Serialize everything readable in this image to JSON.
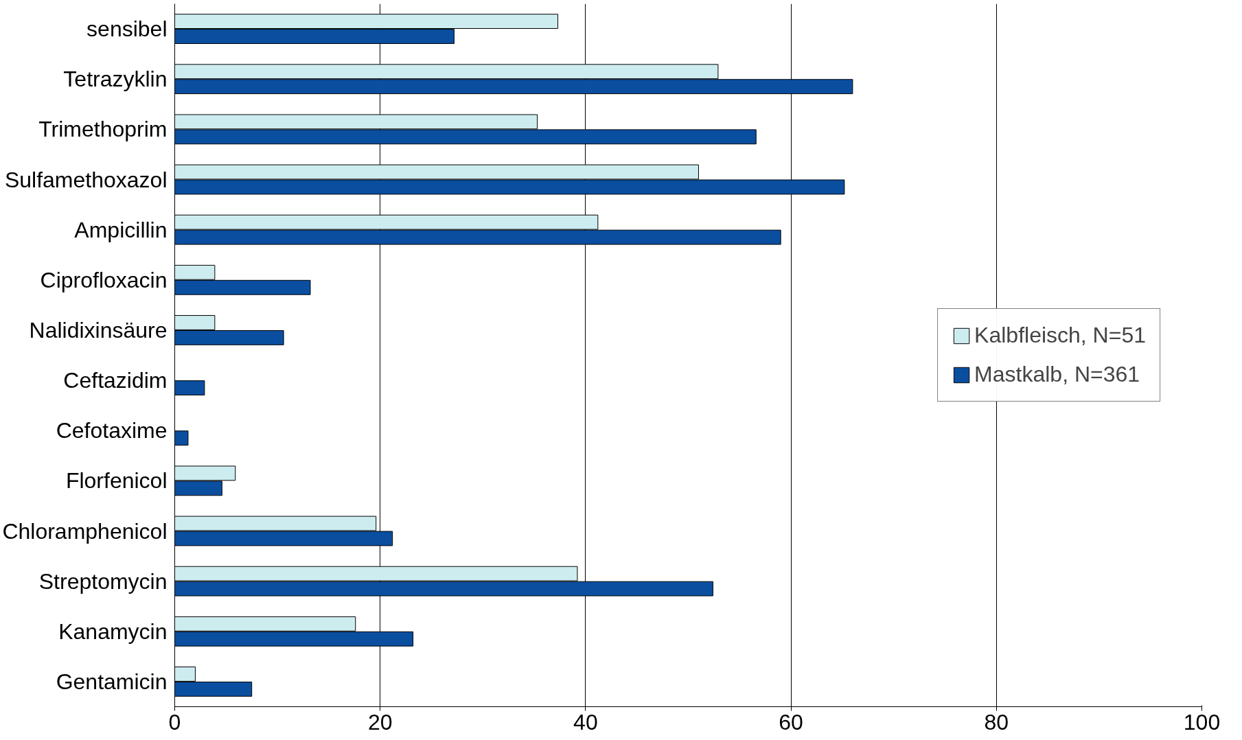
{
  "chart_data": {
    "type": "bar",
    "orientation": "horizontal",
    "categories": [
      "sensibel",
      "Tetrazyklin",
      "Trimethoprim",
      "Sulfamethoxazol",
      "Ampicillin",
      "Ciprofloxacin",
      "Nalidixinsäure",
      "Ceftazidim",
      "Cefotaxime",
      "Florfenicol",
      "Chloramphenicol",
      "Streptomycin",
      "Kanamycin",
      "Gentamicin"
    ],
    "series": [
      {
        "name": "Kalbfleisch, N=51",
        "color": "#cdecf0",
        "values": [
          37.3,
          52.9,
          35.3,
          51.0,
          41.2,
          3.9,
          3.9,
          0,
          0,
          5.9,
          19.6,
          39.2,
          17.6,
          2.0
        ]
      },
      {
        "name": "Mastkalb, N=361",
        "color": "#0a4ea0",
        "values": [
          27.2,
          66.0,
          56.6,
          65.2,
          59.0,
          13.2,
          10.6,
          2.9,
          1.3,
          4.6,
          21.2,
          52.4,
          23.2,
          7.5
        ]
      }
    ],
    "xlim": [
      0,
      100
    ],
    "xticks": [
      0,
      20,
      40,
      60,
      80,
      100
    ],
    "grid": "x",
    "legend": "right"
  }
}
